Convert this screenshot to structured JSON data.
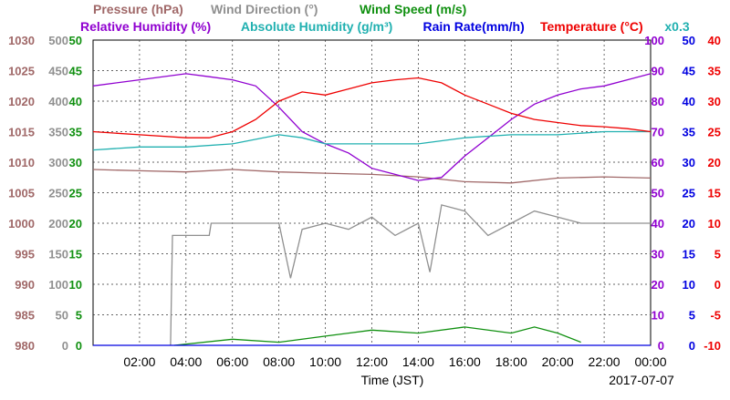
{
  "chart_data": {
    "type": "line",
    "date_label": "2017-07-07",
    "xlabel": "Time (JST)",
    "x_ticks": [
      "02:00",
      "04:00",
      "06:00",
      "08:00",
      "10:00",
      "12:00",
      "14:00",
      "16:00",
      "18:00",
      "20:00",
      "22:00",
      "00:00"
    ],
    "xlim": [
      "00:00",
      "24:00"
    ],
    "grid": true,
    "legend_row1": [
      {
        "name": "Pressure (hPa)",
        "color": "#a06868"
      },
      {
        "name": "Wind Direction (°)",
        "color": "#909090"
      },
      {
        "name": "Wind Speed (m/s)",
        "color": "#109010"
      }
    ],
    "legend_row2": [
      {
        "name": "Relative Humidity (%)",
        "color": "#9000d0"
      },
      {
        "name": "Absolute Humidity (g/m³)",
        "color": "#20b0b0"
      },
      {
        "name": "Rain Rate(mm/h)",
        "color": "#0000e0"
      },
      {
        "name": "Temperature (°C)",
        "color": "#ee0000"
      },
      {
        "name": "x0.3",
        "color": "#20b0b0"
      }
    ],
    "axes": {
      "pressure": {
        "ticks": [
          "980",
          "985",
          "990",
          "995",
          "1000",
          "1005",
          "1010",
          "1015",
          "1020",
          "1025",
          "1030"
        ],
        "ylim": [
          980,
          1030
        ],
        "color": "#a06868"
      },
      "wind_direction": {
        "ticks": [
          "0",
          "50",
          "100",
          "150",
          "200",
          "250",
          "300",
          "350",
          "400",
          "450",
          "500"
        ],
        "ylim": [
          0,
          500
        ],
        "color": "#909090"
      },
      "wind_speed": {
        "ticks": [
          "0",
          "5",
          "10",
          "15",
          "20",
          "25",
          "30",
          "35",
          "40",
          "45",
          "50"
        ],
        "ylim": [
          0,
          50
        ],
        "color": "#109010"
      },
      "relative_humidity": {
        "ticks": [
          "0",
          "10",
          "20",
          "30",
          "40",
          "50",
          "60",
          "70",
          "80",
          "90",
          "100"
        ],
        "ylim": [
          0,
          100
        ],
        "color": "#9000d0"
      },
      "rain_rate": {
        "ticks": [
          "0",
          "5",
          "10",
          "15",
          "20",
          "25",
          "30",
          "35",
          "40",
          "45",
          "50"
        ],
        "ylim": [
          0,
          50
        ],
        "color": "#0000e0"
      },
      "temperature": {
        "ticks": [
          "-10",
          "-5",
          "0",
          "5",
          "10",
          "15",
          "20",
          "25",
          "30",
          "35",
          "40"
        ],
        "ylim": [
          -10,
          40
        ],
        "color": "#ee0000"
      }
    },
    "series": [
      {
        "name": "Pressure (hPa)",
        "axis": "pressure",
        "color": "#a06868",
        "x": [
          "00:00",
          "02:00",
          "04:00",
          "06:00",
          "08:00",
          "10:00",
          "12:00",
          "14:00",
          "16:00",
          "18:00",
          "20:00",
          "22:00",
          "24:00"
        ],
        "y": [
          1008.8,
          1008.6,
          1008.4,
          1008.8,
          1008.4,
          1008.2,
          1008.0,
          1007.6,
          1006.8,
          1006.6,
          1007.4,
          1007.6,
          1007.4
        ]
      },
      {
        "name": "Wind Direction (°)",
        "axis": "wind_direction",
        "color": "#909090",
        "x": [
          "03:20",
          "03:25",
          "05:00",
          "05:05",
          "08:00",
          "08:30",
          "09:00",
          "10:00",
          "11:00",
          "12:00",
          "13:00",
          "14:00",
          "14:30",
          "15:00",
          "16:00",
          "17:00",
          "18:00",
          "19:00",
          "20:00",
          "21:00",
          "24:00"
        ],
        "y": [
          0,
          180,
          180,
          200,
          200,
          110,
          190,
          200,
          190,
          210,
          180,
          200,
          120,
          230,
          220,
          180,
          200,
          220,
          210,
          200,
          200
        ]
      },
      {
        "name": "Wind Speed (m/s)",
        "axis": "wind_speed",
        "color": "#109010",
        "x": [
          "03:30",
          "06:00",
          "08:00",
          "10:00",
          "11:00",
          "12:00",
          "14:00",
          "16:00",
          "18:00",
          "19:00",
          "20:00",
          "21:00"
        ],
        "y": [
          0,
          1,
          0.5,
          1.5,
          2,
          2.5,
          2,
          3,
          2,
          3,
          2,
          0.5
        ]
      },
      {
        "name": "Relative Humidity (%)",
        "axis": "relative_humidity",
        "color": "#9000d0",
        "x": [
          "00:00",
          "02:00",
          "04:00",
          "05:00",
          "06:00",
          "07:00",
          "08:00",
          "09:00",
          "10:00",
          "11:00",
          "12:00",
          "13:00",
          "14:00",
          "15:00",
          "16:00",
          "17:00",
          "18:00",
          "19:00",
          "20:00",
          "21:00",
          "22:00",
          "23:00",
          "24:00"
        ],
        "y": [
          85,
          87,
          89,
          88,
          87,
          85,
          78,
          70,
          66,
          63,
          58,
          56,
          54,
          55,
          62,
          68,
          74,
          79,
          82,
          84,
          85,
          87,
          89
        ]
      },
      {
        "name": "Absolute Humidity (g/m³)",
        "axis": "wind_speed",
        "color": "#20b0b0",
        "x": [
          "00:00",
          "02:00",
          "04:00",
          "06:00",
          "08:00",
          "09:00",
          "10:00",
          "12:00",
          "14:00",
          "16:00",
          "18:00",
          "20:00",
          "22:00",
          "24:00"
        ],
        "y": [
          32,
          32.5,
          32.5,
          33,
          34.5,
          34,
          33,
          33,
          33,
          34,
          34.5,
          34.5,
          35,
          35
        ]
      },
      {
        "name": "Rain Rate(mm/h)",
        "axis": "rain_rate",
        "color": "#0000e0",
        "x": [
          "00:00",
          "24:00"
        ],
        "y": [
          0,
          0
        ]
      },
      {
        "name": "Temperature (°C)",
        "axis": "temperature",
        "color": "#ee0000",
        "x": [
          "00:00",
          "02:00",
          "04:00",
          "05:00",
          "06:00",
          "07:00",
          "08:00",
          "09:00",
          "10:00",
          "11:00",
          "12:00",
          "13:00",
          "14:00",
          "15:00",
          "16:00",
          "17:00",
          "18:00",
          "19:00",
          "20:00",
          "21:00",
          "22:00",
          "23:00",
          "24:00"
        ],
        "y": [
          25,
          24.5,
          24,
          24,
          25,
          27,
          30,
          31.5,
          31,
          32,
          33,
          33.5,
          33.8,
          33,
          31,
          29.5,
          28,
          27,
          26.5,
          26,
          25.8,
          25.5,
          25
        ]
      }
    ]
  }
}
